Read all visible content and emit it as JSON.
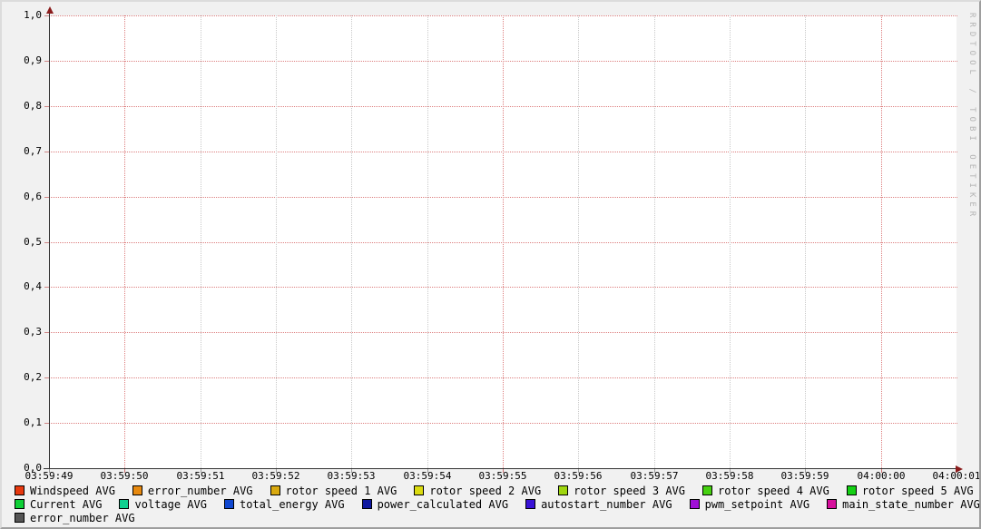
{
  "watermark": "RRDTOOL / TOBI OETIKER",
  "colors": {
    "background": "#f1f1f1",
    "plot_background": "#ffffff",
    "major_grid": "#dd7f7f",
    "minor_grid": "#c9c9c9",
    "axis": "#333333",
    "arrow": "#8b1c1c",
    "watermark_text": "#b4b4b4"
  },
  "y_axis": {
    "labels": [
      "1,0",
      "0,9",
      "0,8",
      "0,7",
      "0,6",
      "0,5",
      "0,4",
      "0,3",
      "0,2",
      "0,1",
      "0,0"
    ]
  },
  "x_axis": {
    "ticks": [
      {
        "label": "03:59:49",
        "major": false,
        "grid": false
      },
      {
        "label": "03:59:50",
        "major": true,
        "grid": true
      },
      {
        "label": "03:59:51",
        "major": false,
        "grid": true
      },
      {
        "label": "03:59:52",
        "major": false,
        "grid": true
      },
      {
        "label": "03:59:53",
        "major": false,
        "grid": true
      },
      {
        "label": "03:59:54",
        "major": false,
        "grid": true
      },
      {
        "label": "03:59:55",
        "major": true,
        "grid": true
      },
      {
        "label": "03:59:56",
        "major": false,
        "grid": true
      },
      {
        "label": "03:59:57",
        "major": false,
        "grid": true
      },
      {
        "label": "03:59:58",
        "major": false,
        "grid": true
      },
      {
        "label": "03:59:59",
        "major": false,
        "grid": true
      },
      {
        "label": "04:00:00",
        "major": true,
        "grid": true
      },
      {
        "label": "04:00:01",
        "major": false,
        "grid": false
      }
    ]
  },
  "legend": {
    "rows": [
      [
        {
          "label": "Windspeed AVG",
          "color": "#e7390f"
        },
        {
          "label": "error_number AVG",
          "color": "#e7890f"
        },
        {
          "label": "rotor speed 1 AVG",
          "color": "#d9a90f"
        },
        {
          "label": "rotor speed 2 AVG",
          "color": "#dbdb0f"
        },
        {
          "label": "rotor speed 3 AVG",
          "color": "#9fd60f"
        },
        {
          "label": "rotor speed 4 AVG",
          "color": "#45d00f"
        },
        {
          "label": "rotor speed 5 AVG",
          "color": "#14d014"
        }
      ],
      [
        {
          "label": "Current AVG",
          "color": "#0fd037"
        },
        {
          "label": "voltage AVG",
          "color": "#0fd08f"
        },
        {
          "label": "total_energy AVG",
          "color": "#0f47d0"
        },
        {
          "label": "power_calculated AVG",
          "color": "#0f18a0"
        },
        {
          "label": "autostart_number AVG",
          "color": "#3912d6"
        },
        {
          "label": "pwm_setpoint AVG",
          "color": "#a00fd6"
        },
        {
          "label": "main_state_number AVG",
          "color": "#d60f9c"
        }
      ],
      [
        {
          "label": "error_number AVG",
          "color": "#555555"
        }
      ]
    ]
  },
  "chart_data": {
    "type": "line",
    "title": "",
    "xlabel": "",
    "ylabel": "",
    "x_ticks": [
      "03:59:49",
      "03:59:50",
      "03:59:51",
      "03:59:52",
      "03:59:53",
      "03:59:54",
      "03:59:55",
      "03:59:56",
      "03:59:57",
      "03:59:58",
      "03:59:59",
      "04:00:00",
      "04:00:01"
    ],
    "ylim": [
      0.0,
      1.0
    ],
    "y_tick_step": 0.1,
    "y_tick_labels": [
      "0,0",
      "0,1",
      "0,2",
      "0,3",
      "0,4",
      "0,5",
      "0,6",
      "0,7",
      "0,8",
      "0,9",
      "1,0"
    ],
    "grid": true,
    "legend_position": "bottom",
    "series": [
      {
        "name": "Windspeed AVG",
        "color": "#e7390f",
        "values": []
      },
      {
        "name": "error_number AVG",
        "color": "#e7890f",
        "values": []
      },
      {
        "name": "rotor speed 1 AVG",
        "color": "#d9a90f",
        "values": []
      },
      {
        "name": "rotor speed 2 AVG",
        "color": "#dbdb0f",
        "values": []
      },
      {
        "name": "rotor speed 3 AVG",
        "color": "#9fd60f",
        "values": []
      },
      {
        "name": "rotor speed 4 AVG",
        "color": "#45d00f",
        "values": []
      },
      {
        "name": "rotor speed 5 AVG",
        "color": "#14d014",
        "values": []
      },
      {
        "name": "Current AVG",
        "color": "#0fd037",
        "values": []
      },
      {
        "name": "voltage AVG",
        "color": "#0fd08f",
        "values": []
      },
      {
        "name": "total_energy AVG",
        "color": "#0f47d0",
        "values": []
      },
      {
        "name": "power_calculated AVG",
        "color": "#0f18a0",
        "values": []
      },
      {
        "name": "autostart_number AVG",
        "color": "#3912d6",
        "values": []
      },
      {
        "name": "pwm_setpoint AVG",
        "color": "#a00fd6",
        "values": []
      },
      {
        "name": "main_state_number AVG",
        "color": "#d60f9c",
        "values": []
      },
      {
        "name": "error_number AVG",
        "color": "#555555",
        "values": []
      }
    ]
  }
}
